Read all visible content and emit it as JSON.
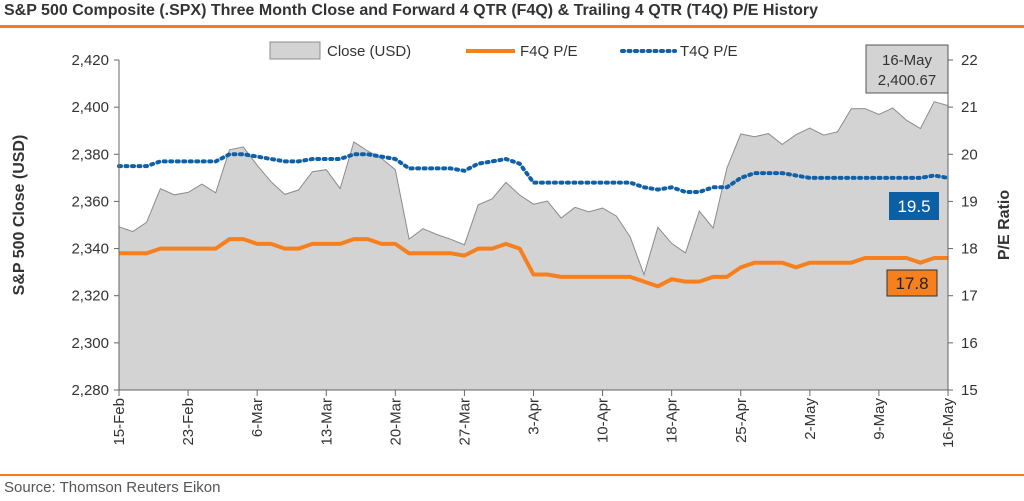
{
  "title": "S&P 500 Composite (.SPX) Three Month Close and Forward 4 QTR (F4Q) & Trailing 4 QTR (T4Q) P/E History",
  "source": "Source: Thomson Reuters Eikon",
  "colors": {
    "accent": "#f47c20",
    "area_fill": "#d3d3d3",
    "area_stroke": "#8c8c8c",
    "f4q": "#f7801e",
    "t4q": "#1060a8",
    "callout_box": "#0a5fa5",
    "title_rule": "#f47c20"
  },
  "chart_data": {
    "type": "area",
    "title": "S&P 500 Composite (.SPX) Three Month Close and Forward 4 QTR (F4Q) & Trailing 4 QTR (T4Q) P/E History",
    "ylabel": "S&P 500 Close (USD)",
    "y2label": "P/E Ratio",
    "ylim": [
      2280,
      2420
    ],
    "y2lim": [
      15,
      22
    ],
    "yticks": [
      "2,280",
      "2,300",
      "2,320",
      "2,340",
      "2,360",
      "2,380",
      "2,400",
      "2,420"
    ],
    "y2ticks": [
      "15",
      "16",
      "17",
      "18",
      "19",
      "20",
      "21",
      "22"
    ],
    "xticks": [
      "15-Feb",
      "23-Feb",
      "6-Mar",
      "13-Mar",
      "20-Mar",
      "27-Mar",
      "3-Apr",
      "10-Apr",
      "18-Apr",
      "25-Apr",
      "2-May",
      "9-May",
      "16-May"
    ],
    "legend_position": "top",
    "grid": false,
    "series": [
      {
        "name": "Close (USD)",
        "type": "area",
        "axis": "left",
        "values": [
          2349.25,
          2347.22,
          2351.16,
          2365.38,
          2362.82,
          2363.81,
          2367.34,
          2363.64,
          2381.92,
          2383.12,
          2375.31,
          2368.39,
          2362.98,
          2364.87,
          2372.6,
          2373.47,
          2365.45,
          2385.26,
          2381.38,
          2378.25,
          2373.47,
          2344.02,
          2348.45,
          2345.96,
          2343.98,
          2341.59,
          2358.57,
          2361.13,
          2368.06,
          2362.72,
          2358.84,
          2360.16,
          2352.95,
          2357.49,
          2355.54,
          2357.16,
          2353.78,
          2344.93,
          2328.95,
          2349.01,
          2342.19,
          2338.17,
          2355.84,
          2348.69,
          2374.15,
          2388.61,
          2387.45,
          2388.77,
          2384.2,
          2388.33,
          2391.17,
          2388.13,
          2389.52,
          2399.29,
          2399.38,
          2396.92,
          2399.63,
          2394.44,
          2390.9,
          2402.32,
          2400.67
        ]
      },
      {
        "name": "F4Q P/E",
        "type": "line",
        "axis": "right",
        "values": [
          17.9,
          17.9,
          17.9,
          18.0,
          18.0,
          18.0,
          18.0,
          18.0,
          18.2,
          18.2,
          18.1,
          18.1,
          18.0,
          18.0,
          18.1,
          18.1,
          18.1,
          18.2,
          18.2,
          18.1,
          18.1,
          17.9,
          17.9,
          17.9,
          17.9,
          17.85,
          18.0,
          18.0,
          18.1,
          18.0,
          17.45,
          17.45,
          17.4,
          17.4,
          17.4,
          17.4,
          17.4,
          17.4,
          17.3,
          17.2,
          17.35,
          17.3,
          17.3,
          17.4,
          17.4,
          17.6,
          17.7,
          17.7,
          17.7,
          17.6,
          17.7,
          17.7,
          17.7,
          17.7,
          17.8,
          17.8,
          17.8,
          17.8,
          17.7,
          17.8,
          17.8
        ]
      },
      {
        "name": "T4Q P/E",
        "type": "line",
        "axis": "right",
        "values": [
          19.75,
          19.75,
          19.75,
          19.85,
          19.85,
          19.85,
          19.85,
          19.85,
          20.0,
          20.0,
          19.95,
          19.9,
          19.85,
          19.85,
          19.9,
          19.9,
          19.9,
          20.0,
          20.0,
          19.95,
          19.9,
          19.7,
          19.7,
          19.7,
          19.7,
          19.65,
          19.8,
          19.85,
          19.9,
          19.8,
          19.4,
          19.4,
          19.4,
          19.4,
          19.4,
          19.4,
          19.4,
          19.4,
          19.3,
          19.25,
          19.3,
          19.2,
          19.2,
          19.3,
          19.3,
          19.5,
          19.6,
          19.6,
          19.6,
          19.55,
          19.5,
          19.5,
          19.5,
          19.5,
          19.5,
          19.5,
          19.5,
          19.5,
          19.5,
          19.55,
          19.5
        ]
      }
    ],
    "annotations": {
      "last_date": "16-May",
      "last_close": "2,400.67",
      "t4q_last": "19.5",
      "f4q_last": "17.8"
    }
  }
}
